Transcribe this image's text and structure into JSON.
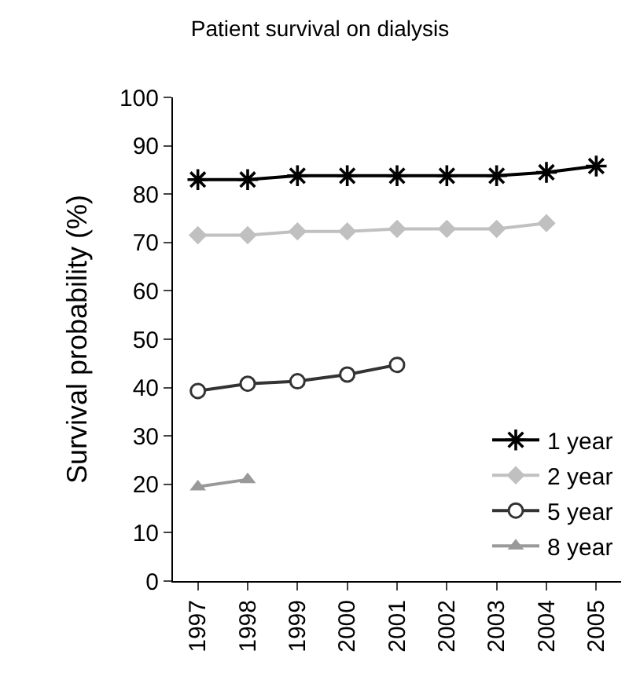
{
  "chart_data": {
    "type": "line",
    "title": "Patient survival on dialysis",
    "ylabel": "Survival probability (%)",
    "categories": [
      "1997",
      "1998",
      "1999",
      "2000",
      "2001",
      "2002",
      "2003",
      "2004",
      "2005"
    ],
    "ylim": [
      0,
      100
    ],
    "yticks": [
      0,
      10,
      20,
      30,
      40,
      50,
      60,
      70,
      80,
      90,
      100
    ],
    "legend": "bottom right",
    "series": [
      {
        "name": "1 year",
        "color": "#000000",
        "marker": "cross",
        "values": [
          83,
          83,
          83.8,
          83.8,
          83.8,
          83.8,
          83.8,
          84.5,
          85.8
        ]
      },
      {
        "name": "2 year",
        "color": "#c0c0c0",
        "marker": "diamond",
        "values": [
          71.5,
          71.5,
          72.3,
          72.3,
          72.8,
          72.8,
          72.8,
          74,
          null
        ]
      },
      {
        "name": "5 year",
        "color": "#333333",
        "marker": "circle",
        "values": [
          39.3,
          40.8,
          41.3,
          42.7,
          44.7,
          null,
          null,
          null,
          null
        ]
      },
      {
        "name": "8 year",
        "color": "#999999",
        "marker": "triangle",
        "values": [
          19.5,
          21,
          null,
          null,
          null,
          null,
          null,
          null,
          null
        ]
      }
    ]
  }
}
